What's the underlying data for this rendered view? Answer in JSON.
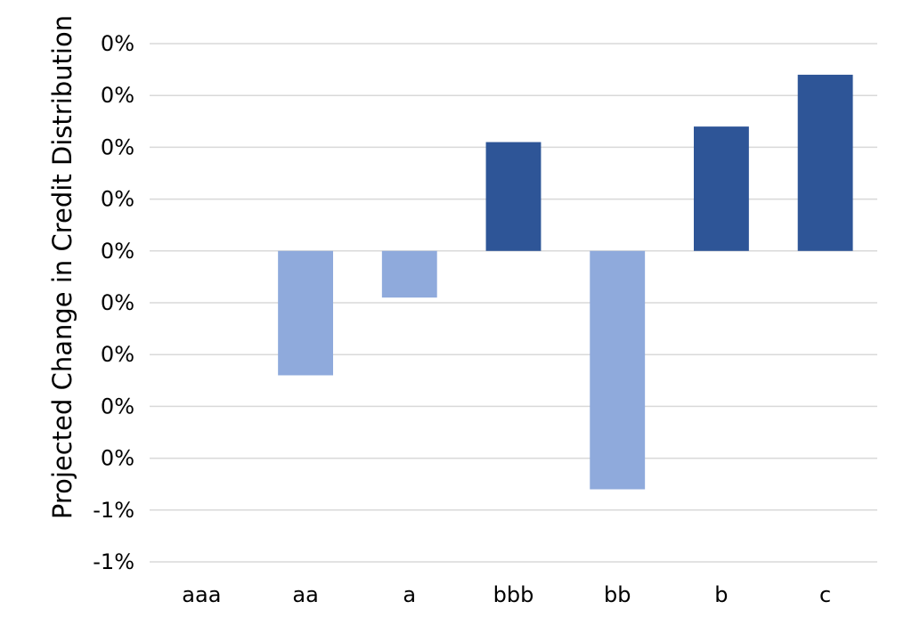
{
  "chart_data": {
    "type": "bar",
    "title": "",
    "xlabel": "",
    "ylabel": "Projected Change in Credit Distribution",
    "categories": [
      "aaa",
      "aa",
      "a",
      "bbb",
      "bb",
      "b",
      "c"
    ],
    "values": [
      0,
      -0.0024,
      -0.0009,
      0.0021,
      -0.0046,
      0.0024,
      0.0034
    ],
    "ylim": [
      -0.006,
      0.004
    ],
    "yticks": [
      0.004,
      0.003,
      0.002,
      0.001,
      0.0,
      -0.001,
      -0.002,
      -0.003,
      -0.004,
      -0.005,
      -0.006
    ],
    "ytick_labels": [
      "0%",
      "0%",
      "0%",
      "0%",
      "0%",
      "0%",
      "0%",
      "0%",
      "0%",
      "-1%",
      "-1%"
    ],
    "grid": true,
    "legend": "none",
    "colors": {
      "positive": "#2e5597",
      "negative": "#8faadc",
      "grid": "#d9d9d9"
    }
  }
}
